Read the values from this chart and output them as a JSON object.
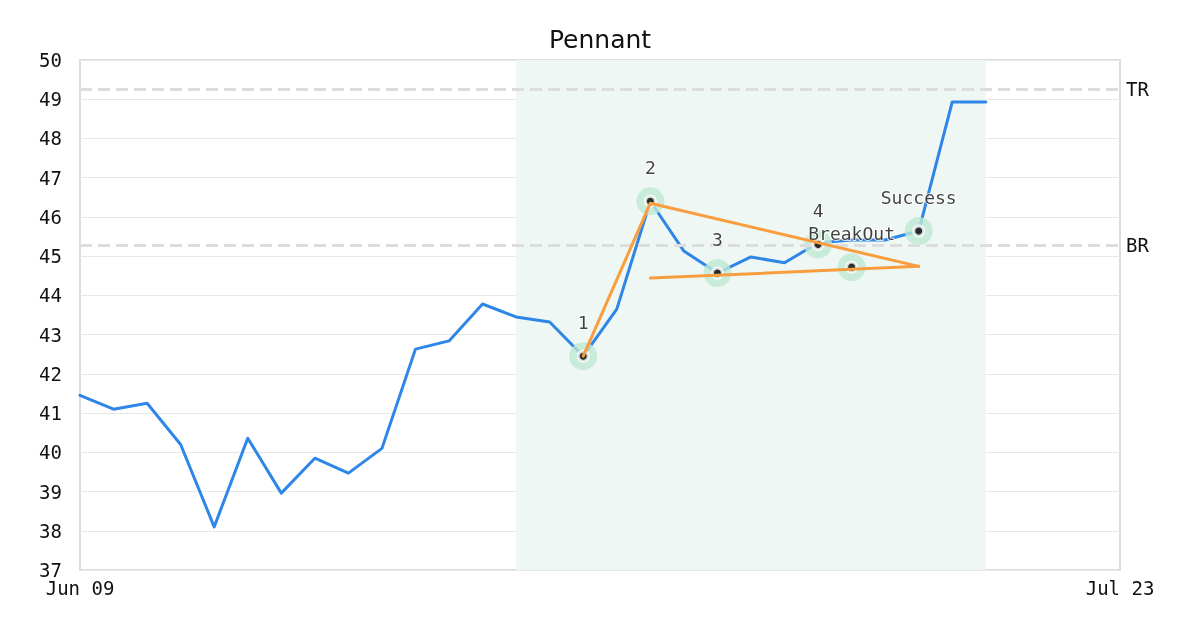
{
  "chart_data": {
    "type": "line",
    "title": "Pennant",
    "categories": [
      "Jun 09",
      null,
      null,
      null,
      null,
      null,
      null,
      null,
      null,
      null,
      null,
      null,
      null,
      null,
      null,
      null,
      null,
      null,
      null,
      null,
      null,
      null,
      null,
      null,
      null,
      null,
      null,
      null,
      null,
      null,
      null,
      "Jul 23"
    ],
    "ylim": [
      37,
      50
    ],
    "yticks": [
      37,
      38,
      39,
      40,
      41,
      42,
      43,
      44,
      45,
      46,
      47,
      48,
      49,
      50
    ],
    "grid": "y",
    "marker": "none",
    "line_style": "solid",
    "series": [
      {
        "color": "#2e86e6",
        "values": [
          41.45,
          41.1,
          41.25,
          40.2,
          38.1,
          40.36,
          38.96,
          39.85,
          39.47,
          40.1,
          42.63,
          42.84,
          43.78,
          43.45,
          43.32,
          42.45,
          43.65,
          46.4,
          45.13,
          44.57,
          44.98,
          44.83,
          45.34,
          45.41,
          45.41,
          45.64,
          48.93,
          48.93,
          null,
          null,
          null,
          null
        ]
      },
      {
        "type": "line",
        "color": "#f99d3e",
        "values": [
          null,
          null,
          null,
          null,
          null,
          null,
          null,
          null,
          null,
          null,
          null,
          null,
          null,
          null,
          null,
          42.45,
          null,
          46.35,
          null,
          null,
          null,
          null,
          null,
          null,
          null,
          44.74,
          null,
          null,
          null,
          null,
          null,
          null
        ]
      },
      {
        "type": "line",
        "color": "#f99d3e",
        "values": [
          null,
          null,
          null,
          null,
          null,
          null,
          null,
          null,
          null,
          null,
          null,
          null,
          null,
          null,
          null,
          null,
          null,
          44.44,
          null,
          null,
          null,
          null,
          null,
          null,
          null,
          44.74,
          null,
          null,
          null,
          null,
          null,
          null
        ]
      },
      {
        "type": "scatter",
        "color": "#000000",
        "marker": "circle",
        "values": [
          null,
          null,
          null,
          null,
          null,
          null,
          null,
          null,
          null,
          null,
          null,
          null,
          null,
          null,
          null,
          42.45,
          null,
          46.4,
          null,
          44.57,
          null,
          null,
          45.3,
          44.72,
          null,
          45.64,
          null,
          null,
          null,
          null,
          null,
          null
        ]
      }
    ],
    "ref_lines": [
      {
        "axis": "y",
        "value": 49.26,
        "label": "TR",
        "color": "#dddddd",
        "line_style": "dashed"
      },
      {
        "axis": "y",
        "value": 45.28,
        "label": "BR",
        "color": "#dddddd",
        "line_style": "dashed"
      }
    ],
    "annotations": [
      "1",
      "2",
      "3",
      "4",
      "BreakOut",
      "Success"
    ]
  }
}
